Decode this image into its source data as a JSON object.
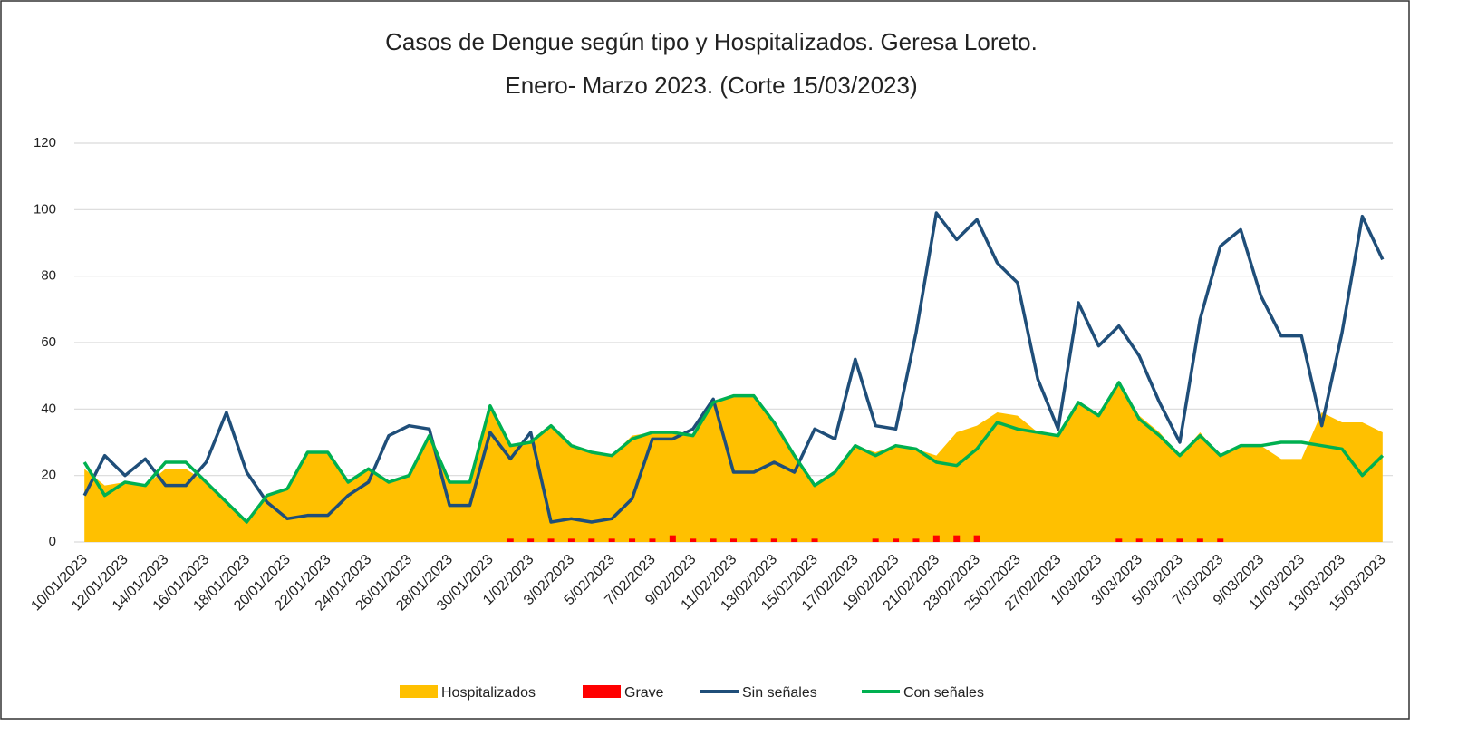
{
  "chart_data": {
    "type": "combo",
    "title": "Casos de Dengue según tipo y Hospitalizados. Geresa Loreto.",
    "subtitle": "Enero- Marzo 2023. (Corte 15/03/2023)",
    "categories": [
      "10/01/2023",
      null,
      "12/01/2023",
      null,
      "14/01/2023",
      null,
      "16/01/2023",
      null,
      "18/01/2023",
      null,
      "20/01/2023",
      null,
      "22/01/2023",
      null,
      "24/01/2023",
      null,
      "26/01/2023",
      null,
      "28/01/2023",
      null,
      "30/01/2023",
      null,
      "1/02/2023",
      null,
      "3/02/2023",
      null,
      "5/02/2023",
      null,
      "7/02/2023",
      null,
      "9/02/2023",
      null,
      "11/02/2023",
      null,
      "13/02/2023",
      null,
      "15/02/2023",
      null,
      "17/02/2023",
      null,
      "19/02/2023",
      null,
      "21/02/2023",
      null,
      "23/02/2023",
      null,
      "25/02/2023",
      null,
      "27/02/2023",
      null,
      "1/03/2023",
      null,
      "3/03/2023",
      null,
      "5/03/2023",
      null,
      "7/03/2023",
      null,
      "9/03/2023",
      null,
      "11/03/2023",
      null,
      "13/03/2023",
      null,
      "15/03/2023"
    ],
    "series": [
      {
        "name": "Hospitalizados",
        "type": "area",
        "color": "#ffc000",
        "values": [
          22,
          17,
          18,
          17,
          22,
          22,
          18,
          12,
          6,
          14,
          16,
          27,
          27,
          18,
          22,
          18,
          20,
          32,
          18,
          18,
          40,
          29,
          30,
          35,
          29,
          27,
          26,
          32,
          33,
          33,
          32,
          42,
          44,
          44,
          36,
          26,
          17,
          21,
          29,
          27,
          29,
          28,
          26,
          33,
          35,
          39,
          38,
          33,
          32,
          42,
          38,
          48,
          38,
          33,
          26,
          33,
          26,
          29,
          29,
          25,
          25,
          39,
          36,
          36,
          33
        ]
      },
      {
        "name": "Grave",
        "type": "bar",
        "color": "#ff0000",
        "values": [
          0,
          0,
          0,
          0,
          0,
          0,
          0,
          0,
          0,
          0,
          0,
          0,
          0,
          0,
          0,
          0,
          0,
          0,
          0,
          0,
          0,
          1,
          1,
          1,
          1,
          1,
          1,
          1,
          1,
          2,
          1,
          1,
          1,
          1,
          1,
          1,
          1,
          0,
          0,
          1,
          1,
          1,
          2,
          2,
          2,
          0,
          0,
          0,
          0,
          0,
          0,
          1,
          1,
          1,
          1,
          1,
          1,
          0,
          0,
          0,
          0,
          0,
          0,
          0,
          0
        ]
      },
      {
        "name": "Sin señales",
        "type": "line",
        "color": "#1f4e79",
        "values": [
          14,
          26,
          20,
          25,
          17,
          17,
          24,
          39,
          21,
          12,
          7,
          8,
          8,
          14,
          18,
          32,
          35,
          34,
          11,
          11,
          33,
          25,
          33,
          6,
          7,
          6,
          7,
          13,
          31,
          31,
          34,
          43,
          21,
          21,
          24,
          21,
          34,
          31,
          55,
          35,
          34,
          63,
          99,
          91,
          97,
          84,
          78,
          49,
          34,
          72,
          59,
          65,
          56,
          42,
          30,
          67,
          89,
          94,
          74,
          62,
          62,
          35,
          63,
          98,
          85
        ]
      },
      {
        "name": "Con señales",
        "type": "line",
        "color": "#00b050",
        "values": [
          24,
          14,
          18,
          17,
          24,
          24,
          18,
          12,
          6,
          14,
          16,
          27,
          27,
          18,
          22,
          18,
          20,
          32,
          18,
          18,
          41,
          29,
          30,
          35,
          29,
          27,
          26,
          31,
          33,
          33,
          32,
          42,
          44,
          44,
          36,
          26,
          17,
          21,
          29,
          26,
          29,
          28,
          24,
          23,
          28,
          36,
          34,
          33,
          32,
          42,
          38,
          48,
          37,
          32,
          26,
          32,
          26,
          29,
          29,
          30,
          30,
          29,
          28,
          20,
          26
        ]
      }
    ],
    "ylim": [
      0,
      120
    ],
    "yticks": [
      0,
      20,
      40,
      60,
      80,
      100,
      120
    ],
    "grid": true,
    "legend": "bottom"
  }
}
